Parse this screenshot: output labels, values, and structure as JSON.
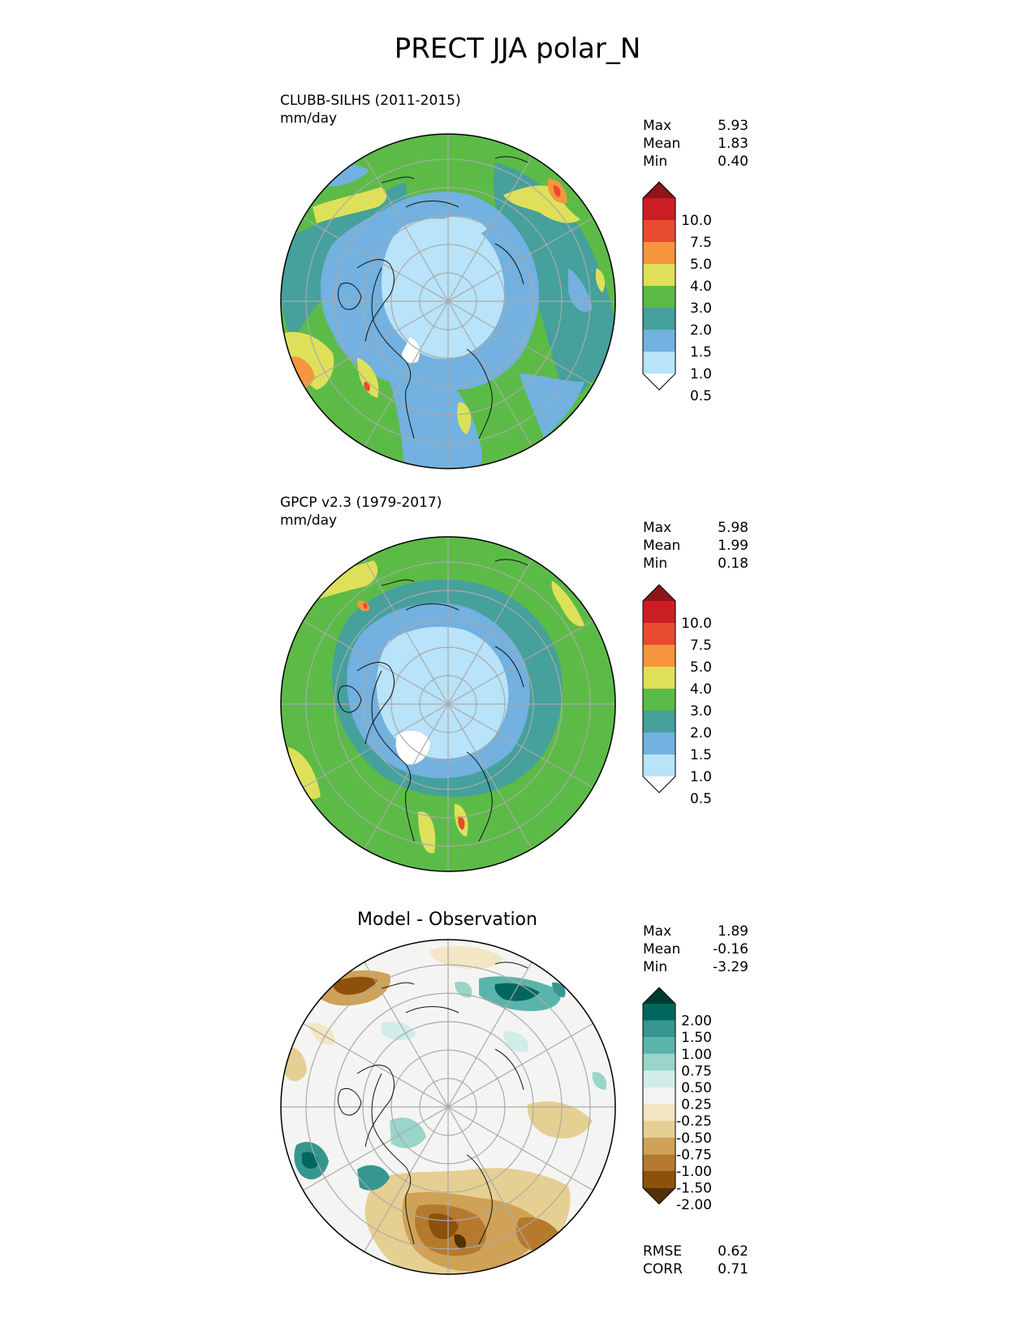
{
  "title": "PRECT JJA polar_N",
  "panels": [
    {
      "id": "model",
      "title_line1": "CLUBB-SILHS (2011-2015)",
      "title_line2": "mm/day",
      "stats": [
        {
          "label": "Max",
          "value": "5.93"
        },
        {
          "label": "Mean",
          "value": "1.83"
        },
        {
          "label": "Min",
          "value": "0.40"
        }
      ]
    },
    {
      "id": "obs",
      "title_line1": "GPCP v2.3 (1979-2017)",
      "title_line2": "mm/day",
      "stats": [
        {
          "label": "Max",
          "value": "5.98"
        },
        {
          "label": "Mean",
          "value": "1.99"
        },
        {
          "label": "Min",
          "value": "0.18"
        }
      ]
    },
    {
      "id": "diff",
      "center_title": "Model - Observation",
      "stats": [
        {
          "label": "Max",
          "value": "1.89"
        },
        {
          "label": "Mean",
          "value": "-0.16"
        },
        {
          "label": "Min",
          "value": "-3.29"
        }
      ],
      "bottom_stats": [
        {
          "label": "RMSE",
          "value": "0.62"
        },
        {
          "label": "CORR",
          "value": "0.71"
        }
      ]
    }
  ],
  "colorbar_precip": {
    "ticks": [
      "10.0",
      "7.5",
      "5.0",
      "4.0",
      "3.0",
      "2.0",
      "1.5",
      "1.0",
      "0.5"
    ],
    "colors": [
      "#8e1518",
      "#cb1e24",
      "#e84b2e",
      "#f7963f",
      "#dfe05a",
      "#5cbb47",
      "#46a09c",
      "#72b1e0",
      "#b8e3f8",
      "#ffffff"
    ]
  },
  "colorbar_diff": {
    "ticks": [
      "2.00",
      "1.50",
      "1.00",
      "0.75",
      "0.50",
      "0.25",
      "-0.25",
      "-0.50",
      "-0.75",
      "-1.00",
      "-1.50",
      "-2.00"
    ],
    "colors": [
      "#003c30",
      "#01665e",
      "#35978f",
      "#5ab4ac",
      "#99d5c9",
      "#d1ede8",
      "#f4f4f2",
      "#f3e6c4",
      "#e6cf92",
      "#cfa257",
      "#b57a2e",
      "#8c510a",
      "#543005"
    ]
  }
}
